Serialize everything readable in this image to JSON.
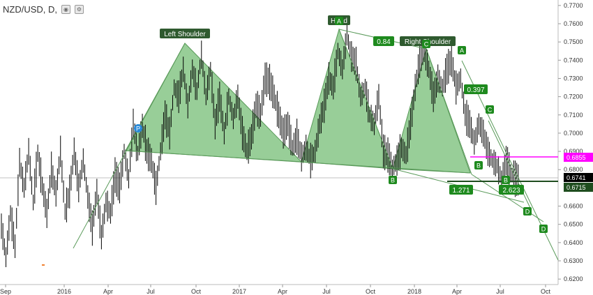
{
  "header": {
    "title": "NZD/USD, D,"
  },
  "chart_data": {
    "type": "line",
    "title": "NZD/USD, D,",
    "y_ticks": [
      "0.7700",
      "0.7600",
      "0.7500",
      "0.7400",
      "0.7300",
      "0.7200",
      "0.7100",
      "0.7000",
      "0.6900",
      "0.6800",
      "0.6600",
      "0.6500",
      "0.6400",
      "0.6300",
      "0.6200"
    ],
    "ylim": [
      0.617,
      0.773
    ],
    "x_ticks": [
      "Sep",
      "2016",
      "Apr",
      "Jul",
      "Oct",
      "2017",
      "Apr",
      "Jul",
      "Oct",
      "2018",
      "Apr",
      "Jul",
      "Oct"
    ],
    "price_badges": [
      {
        "value": "0.6855",
        "color": "#ff00ff"
      },
      {
        "value": "0.6741",
        "color": "#000000"
      },
      {
        "value": "0.6715",
        "color": "#1f4d1f"
      }
    ],
    "pattern_labels": [
      "Left Shoulder",
      "Head",
      "Right Shoulder"
    ],
    "ratio_labels": [
      "0.84",
      "0.397",
      "1.271",
      "2.623"
    ],
    "point_labels": [
      "P",
      "A",
      "C",
      "A",
      "B",
      "C",
      "B",
      "B",
      "D",
      "D"
    ],
    "price_path": [
      [
        0.649,
        0.632,
        0.656,
        0.638,
        0.684,
        0.67,
        0.69,
        0.662,
        0.689,
        0.671,
        0.656,
        0.68,
        0.667,
        0.69,
        0.657,
        0.668,
        0.69,
        0.67,
        0.685,
        0.665,
        0.648,
        0.668,
        0.643,
        0.662,
        0.656,
        0.677,
        0.67,
        0.69,
        0.675,
        0.705,
        0.689,
        0.704,
        0.69,
        0.685,
        0.67
      ],
      [
        0.69,
        0.71,
        0.7,
        0.725,
        0.72,
        0.735,
        0.715,
        0.735,
        0.723,
        0.743,
        0.72,
        0.735,
        0.705,
        0.72,
        0.7,
        0.72,
        0.708,
        0.72,
        0.7,
        0.69,
        0.698,
        0.715,
        0.71,
        0.73,
        0.728,
        0.72,
        0.71,
        0.7,
        0.705,
        0.692,
        0.698,
        0.687,
        0.692,
        0.685
      ],
      [
        0.69,
        0.705,
        0.715,
        0.73,
        0.725,
        0.745,
        0.735,
        0.754,
        0.742,
        0.738,
        0.72,
        0.725,
        0.71,
        0.705,
        0.72,
        0.69,
        0.688,
        0.681,
        0.685,
        0.692,
        0.688,
        0.705,
        0.725,
        0.74,
        0.745,
        0.735,
        0.72,
        0.73,
        0.725,
        0.735,
        0.74,
        0.725,
        0.73,
        0.71,
        0.705
      ],
      [
        0.695,
        0.705,
        0.7,
        0.69,
        0.685,
        0.682,
        0.675,
        0.685,
        0.678,
        0.675,
        0.674
      ]
    ]
  }
}
